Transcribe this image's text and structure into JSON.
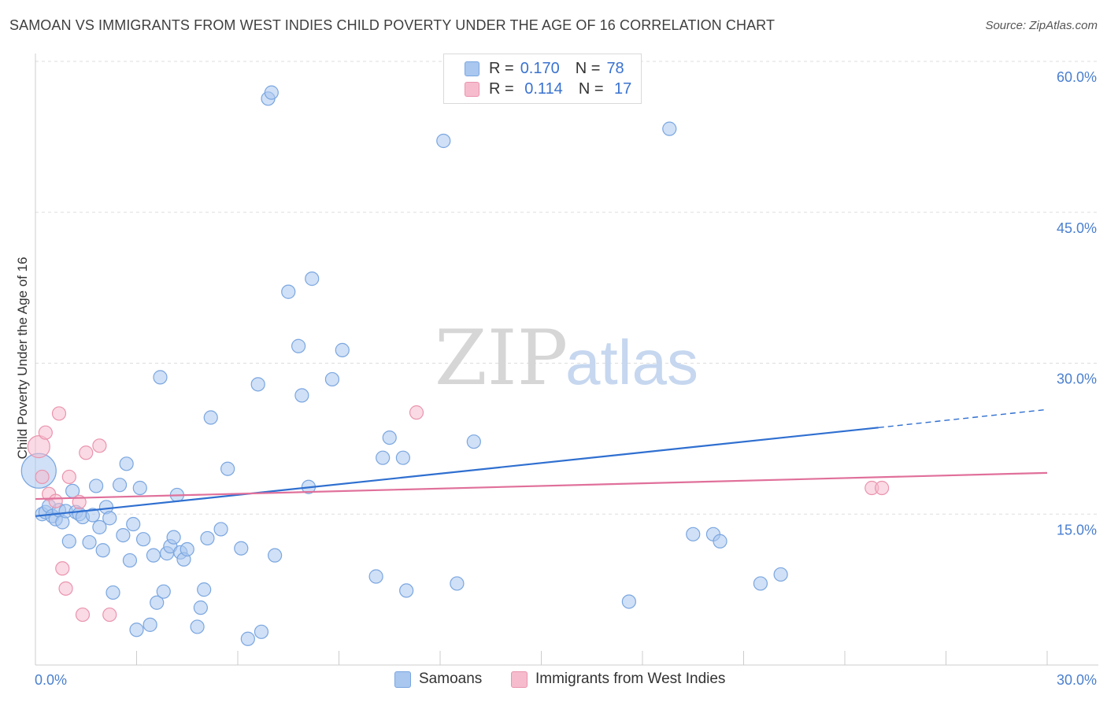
{
  "header": {
    "title": "SAMOAN VS IMMIGRANTS FROM WEST INDIES CHILD POVERTY UNDER THE AGE OF 16 CORRELATION CHART",
    "source": "Source: ZipAtlas.com"
  },
  "watermark": {
    "zip": "ZIP",
    "atlas": "atlas"
  },
  "legend_top": {
    "rows": [
      {
        "r_label": "R =",
        "r_value": "0.170",
        "n_label": "N =",
        "n_value": "78"
      },
      {
        "r_label": "R =",
        "r_value": " 0.114",
        "n_label": "N =",
        "n_value": " 17"
      }
    ]
  },
  "legend_bottom": {
    "items": [
      "Samoans",
      "Immigrants from West Indies"
    ]
  },
  "colors": {
    "samoan_fill": "#a9c7ef",
    "samoan_stroke": "#7aa6e0",
    "samoan_line": "#2f6fd0",
    "wi_fill": "#f6bccd",
    "wi_stroke": "#ea94ae",
    "wi_line": "#e0709a",
    "grid": "#dddddd",
    "axis": "#cccccc",
    "tick_text": "#4a7fcf"
  },
  "chart_data": {
    "type": "scatter",
    "title": "SAMOAN VS IMMIGRANTS FROM WEST INDIES CHILD POVERTY UNDER THE AGE OF 16 CORRELATION CHART",
    "xlabel": "",
    "ylabel": "Child Poverty Under the Age of 16",
    "xlim": [
      0,
      30
    ],
    "ylim": [
      0,
      60
    ],
    "x_tick_labels": [
      "0.0%",
      "30.0%"
    ],
    "y_ticks": [
      15,
      30,
      45,
      60
    ],
    "y_tick_labels": [
      "15.0%",
      "30.0%",
      "45.0%",
      "60.0%"
    ],
    "series": [
      {
        "name": "Samoans",
        "r": 0.17,
        "n": 78,
        "trend": {
          "x0": 0,
          "y0": 14.8,
          "x1": 25,
          "y1": 23.6,
          "dash_x1": 30,
          "dash_y1": 25.4
        },
        "points": [
          [
            0.1,
            19.3
          ],
          [
            0.2,
            15.0
          ],
          [
            0.3,
            15.2
          ],
          [
            0.4,
            15.8
          ],
          [
            0.5,
            14.8
          ],
          [
            0.6,
            14.5
          ],
          [
            0.7,
            15.4
          ],
          [
            0.8,
            14.2
          ],
          [
            0.9,
            15.3
          ],
          [
            1.0,
            12.3
          ],
          [
            1.1,
            17.3
          ],
          [
            1.2,
            15.2
          ],
          [
            1.3,
            15.0
          ],
          [
            1.4,
            14.7
          ],
          [
            1.6,
            12.2
          ],
          [
            1.7,
            14.9
          ],
          [
            1.8,
            17.8
          ],
          [
            1.9,
            13.7
          ],
          [
            2.0,
            11.4
          ],
          [
            2.1,
            15.7
          ],
          [
            2.2,
            14.6
          ],
          [
            2.3,
            7.2
          ],
          [
            2.5,
            17.9
          ],
          [
            2.6,
            12.9
          ],
          [
            2.7,
            20.0
          ],
          [
            2.8,
            10.4
          ],
          [
            2.9,
            14.0
          ],
          [
            3.0,
            3.5
          ],
          [
            3.1,
            17.6
          ],
          [
            3.2,
            12.5
          ],
          [
            3.4,
            4.0
          ],
          [
            3.5,
            10.9
          ],
          [
            3.6,
            6.2
          ],
          [
            3.7,
            28.6
          ],
          [
            3.8,
            7.3
          ],
          [
            3.9,
            11.1
          ],
          [
            4.0,
            11.8
          ],
          [
            4.1,
            12.7
          ],
          [
            4.2,
            16.9
          ],
          [
            4.3,
            11.2
          ],
          [
            4.4,
            10.5
          ],
          [
            4.5,
            11.5
          ],
          [
            4.8,
            3.8
          ],
          [
            4.9,
            5.7
          ],
          [
            5.0,
            7.5
          ],
          [
            5.1,
            12.6
          ],
          [
            5.2,
            24.6
          ],
          [
            5.5,
            13.5
          ],
          [
            5.7,
            19.5
          ],
          [
            6.1,
            11.6
          ],
          [
            6.3,
            2.6
          ],
          [
            6.6,
            27.9
          ],
          [
            6.7,
            3.3
          ],
          [
            6.9,
            56.3
          ],
          [
            7.0,
            56.9
          ],
          [
            7.1,
            10.9
          ],
          [
            7.5,
            37.1
          ],
          [
            7.8,
            31.7
          ],
          [
            7.9,
            26.8
          ],
          [
            8.2,
            38.4
          ],
          [
            8.1,
            17.7
          ],
          [
            8.8,
            28.4
          ],
          [
            9.1,
            31.3
          ],
          [
            10.1,
            8.8
          ],
          [
            10.3,
            20.6
          ],
          [
            10.5,
            22.6
          ],
          [
            10.9,
            20.6
          ],
          [
            11.0,
            7.4
          ],
          [
            12.1,
            52.1
          ],
          [
            12.5,
            8.1
          ],
          [
            13.0,
            22.2
          ],
          [
            17.6,
            6.3
          ],
          [
            18.8,
            53.3
          ],
          [
            19.5,
            13.0
          ],
          [
            20.1,
            13.0
          ],
          [
            20.3,
            12.3
          ],
          [
            21.5,
            8.1
          ],
          [
            22.1,
            9.0
          ]
        ]
      },
      {
        "name": "Immigrants from West Indies",
        "r": 0.114,
        "n": 17,
        "trend": {
          "x0": 0,
          "y0": 16.5,
          "x1": 30,
          "y1": 19.1
        },
        "points": [
          [
            0.1,
            21.7
          ],
          [
            0.2,
            18.7
          ],
          [
            0.3,
            23.1
          ],
          [
            0.4,
            17.0
          ],
          [
            0.6,
            16.3
          ],
          [
            0.7,
            25.0
          ],
          [
            0.8,
            9.6
          ],
          [
            0.9,
            7.6
          ],
          [
            1.0,
            18.7
          ],
          [
            1.3,
            16.2
          ],
          [
            1.4,
            5.0
          ],
          [
            1.5,
            21.1
          ],
          [
            1.9,
            21.8
          ],
          [
            2.2,
            5.0
          ],
          [
            11.3,
            25.1
          ],
          [
            24.8,
            17.6
          ],
          [
            25.1,
            17.6
          ]
        ]
      }
    ]
  }
}
